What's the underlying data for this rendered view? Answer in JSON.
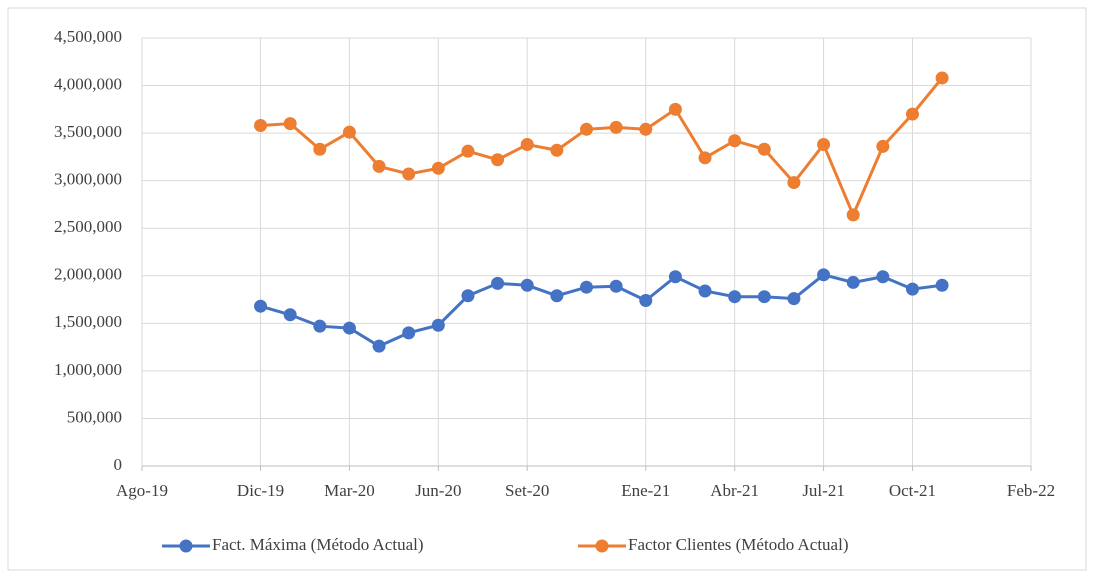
{
  "chart_data": {
    "type": "line",
    "x": [
      "2019-12",
      "2020-01",
      "2020-02",
      "2020-03",
      "2020-04",
      "2020-05",
      "2020-06",
      "2020-07",
      "2020-08",
      "2020-09",
      "2020-10",
      "2020-11",
      "2020-12",
      "2021-01",
      "2021-02",
      "2021-03",
      "2021-04",
      "2021-05",
      "2021-06",
      "2021-07",
      "2021-08",
      "2021-09",
      "2021-10",
      "2021-11"
    ],
    "series": [
      {
        "name": "Fact. Máxima (Método Actual)",
        "color": "#4472c4",
        "values": [
          1680000,
          1590000,
          1470000,
          1450000,
          1260000,
          1400000,
          1480000,
          1790000,
          1920000,
          1900000,
          1790000,
          1880000,
          1890000,
          1740000,
          1990000,
          1840000,
          1780000,
          1780000,
          1760000,
          2010000,
          1930000,
          1990000,
          1860000,
          1900000
        ]
      },
      {
        "name": "Factor Clientes (Método Actual)",
        "color": "#ed7d31",
        "values": [
          3580000,
          3600000,
          3330000,
          3510000,
          3150000,
          3070000,
          3130000,
          3310000,
          3220000,
          3380000,
          3320000,
          3540000,
          3560000,
          3540000,
          3750000,
          3240000,
          3420000,
          3330000,
          2980000,
          3380000,
          2640000,
          3360000,
          3700000,
          4080000
        ]
      }
    ],
    "xlim": [
      "2019-08",
      "2022-02"
    ],
    "xticks": [
      {
        "value": "2019-08",
        "label": "Ago-19"
      },
      {
        "value": "2019-12",
        "label": "Dic-19"
      },
      {
        "value": "2020-03",
        "label": "Mar-20"
      },
      {
        "value": "2020-06",
        "label": "Jun-20"
      },
      {
        "value": "2020-09",
        "label": "Set-20"
      },
      {
        "value": "2021-01",
        "label": "Ene-21"
      },
      {
        "value": "2021-04",
        "label": "Abr-21"
      },
      {
        "value": "2021-07",
        "label": "Jul-21"
      },
      {
        "value": "2021-10",
        "label": "Oct-21"
      },
      {
        "value": "2022-02",
        "label": "Feb-22"
      }
    ],
    "ylim": [
      0,
      4500000
    ],
    "yticks": [
      0,
      {
        "value": 500000,
        "label": "500,000"
      },
      {
        "value": 1000000,
        "label": "1,000,000"
      },
      {
        "value": 1500000,
        "label": "1,500,000"
      },
      {
        "value": 2000000,
        "label": "2,000,000"
      },
      {
        "value": 2500000,
        "label": "2,500,000"
      },
      {
        "value": 3000000,
        "label": "3,000,000"
      },
      {
        "value": 3500000,
        "label": "3,500,000"
      },
      {
        "value": 4000000,
        "label": "4,000,000"
      },
      {
        "value": 4500000,
        "label": "4,500,000"
      }
    ],
    "grid": true,
    "legend": "bottom"
  }
}
